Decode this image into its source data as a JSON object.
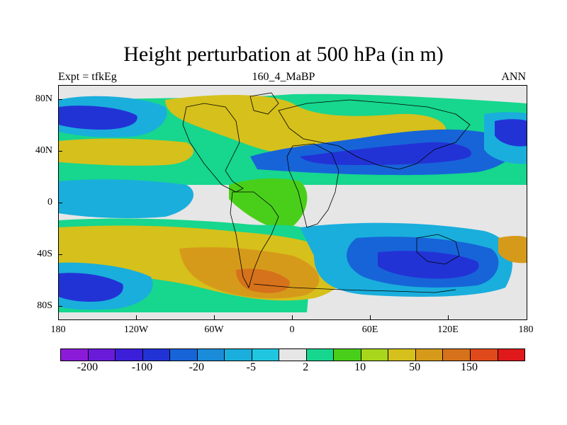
{
  "title": "Height perturbation at 500 hPa (in m)",
  "left_string": "Expt = tfkEg",
  "center_string": "160_4_MaBP",
  "right_string": "ANN",
  "lat_ticks": [
    "80N",
    "40N",
    "0",
    "40S",
    "80S"
  ],
  "lon_ticks": [
    "180",
    "120W",
    "60W",
    "0",
    "60E",
    "120E",
    "180"
  ],
  "colorbar": {
    "colors": [
      "#8c1bd9",
      "#6a1bd9",
      "#3b1fd9",
      "#2233d6",
      "#1764d8",
      "#1a8cd9",
      "#1aaedc",
      "#20c6e0",
      "#e6e6e6",
      "#17d68e",
      "#49cf1a",
      "#a7d61b",
      "#d6c01b",
      "#d69a1b",
      "#d6721b",
      "#e0491b",
      "#e0191b"
    ],
    "labels": [
      {
        "text": "-200",
        "after_box": 1
      },
      {
        "text": "-100",
        "after_box": 3
      },
      {
        "text": "-20",
        "after_box": 5
      },
      {
        "text": "-5",
        "after_box": 7
      },
      {
        "text": "2",
        "after_box": 9
      },
      {
        "text": "10",
        "after_box": 11
      },
      {
        "text": "50",
        "after_box": 13
      },
      {
        "text": "150",
        "after_box": 15
      }
    ]
  },
  "field_colors": {
    "neutral": "#e6e6e6",
    "neg_light": "#1aaedc",
    "neg_mid": "#1764d8",
    "neg_deep": "#2233d6",
    "pos_light": "#17d68e",
    "pos_mid": "#49cf1a",
    "pos_yellow": "#d6c01b",
    "pos_orange": "#d69a1b",
    "pos_dark": "#d6721b"
  }
}
